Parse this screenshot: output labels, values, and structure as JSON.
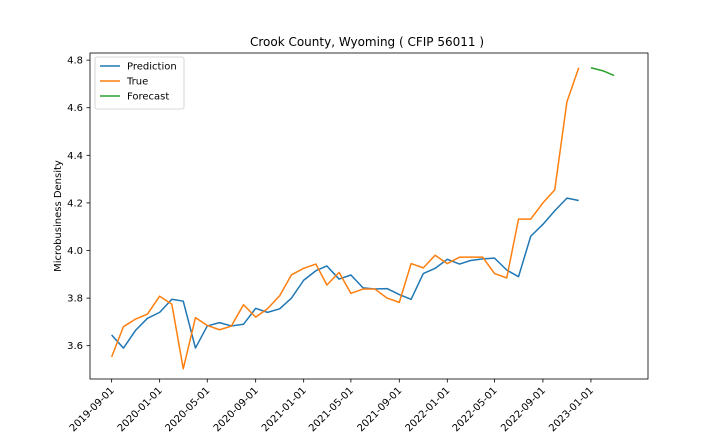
{
  "chart_data": {
    "type": "line",
    "title": "Crook County, Wyoming ( CFIP 56011 )",
    "xlabel": "",
    "ylabel": "Microbusiness Density",
    "x_ticks": [
      "2019-09-01",
      "2020-01-01",
      "2020-05-01",
      "2020-09-01",
      "2021-01-01",
      "2021-05-01",
      "2021-09-01",
      "2022-01-01",
      "2022-05-01",
      "2022-09-01",
      "2023-01-01"
    ],
    "y_ticks": [
      3.6,
      3.8,
      4.0,
      4.2,
      4.4,
      4.6,
      4.8
    ],
    "ylim": [
      3.46,
      4.83
    ],
    "xlim": [
      "2019-07-08",
      "2023-05-26"
    ],
    "grid": false,
    "legend_position": "top-left",
    "series": [
      {
        "name": "Prediction",
        "color": "#1f77b4",
        "points": [
          [
            "2019-09-01",
            3.645
          ],
          [
            "2019-10-01",
            3.59
          ],
          [
            "2019-11-01",
            3.665
          ],
          [
            "2019-12-01",
            3.715
          ],
          [
            "2020-01-01",
            3.74
          ],
          [
            "2020-02-01",
            3.795
          ],
          [
            "2020-03-01",
            3.787
          ],
          [
            "2020-04-01",
            3.59
          ],
          [
            "2020-05-01",
            3.683
          ],
          [
            "2020-06-01",
            3.697
          ],
          [
            "2020-07-01",
            3.683
          ],
          [
            "2020-08-01",
            3.69
          ],
          [
            "2020-09-01",
            3.757
          ],
          [
            "2020-10-01",
            3.74
          ],
          [
            "2020-11-01",
            3.755
          ],
          [
            "2020-12-01",
            3.8
          ],
          [
            "2021-01-01",
            3.875
          ],
          [
            "2021-02-01",
            3.915
          ],
          [
            "2021-03-01",
            3.935
          ],
          [
            "2021-04-01",
            3.88
          ],
          [
            "2021-05-01",
            3.897
          ],
          [
            "2021-06-01",
            3.843
          ],
          [
            "2021-07-01",
            3.838
          ],
          [
            "2021-08-01",
            3.84
          ],
          [
            "2021-09-01",
            3.815
          ],
          [
            "2021-10-01",
            3.795
          ],
          [
            "2021-11-01",
            3.903
          ],
          [
            "2021-12-01",
            3.925
          ],
          [
            "2022-01-01",
            3.963
          ],
          [
            "2022-02-01",
            3.943
          ],
          [
            "2022-03-01",
            3.958
          ],
          [
            "2022-04-01",
            3.965
          ],
          [
            "2022-05-01",
            3.968
          ],
          [
            "2022-06-01",
            3.918
          ],
          [
            "2022-07-01",
            3.89
          ],
          [
            "2022-08-01",
            4.06
          ],
          [
            "2022-09-01",
            4.11
          ],
          [
            "2022-10-01",
            4.167
          ],
          [
            "2022-11-01",
            4.22
          ],
          [
            "2022-12-01",
            4.21
          ]
        ]
      },
      {
        "name": "True",
        "color": "#ff7f0e",
        "points": [
          [
            "2019-09-01",
            3.553
          ],
          [
            "2019-10-01",
            3.68
          ],
          [
            "2019-11-01",
            3.712
          ],
          [
            "2019-12-01",
            3.733
          ],
          [
            "2020-01-01",
            3.808
          ],
          [
            "2020-02-01",
            3.774
          ],
          [
            "2020-03-01",
            3.503
          ],
          [
            "2020-04-01",
            3.718
          ],
          [
            "2020-05-01",
            3.685
          ],
          [
            "2020-06-01",
            3.667
          ],
          [
            "2020-07-01",
            3.682
          ],
          [
            "2020-08-01",
            3.772
          ],
          [
            "2020-09-01",
            3.72
          ],
          [
            "2020-10-01",
            3.755
          ],
          [
            "2020-11-01",
            3.81
          ],
          [
            "2020-12-01",
            3.898
          ],
          [
            "2021-01-01",
            3.925
          ],
          [
            "2021-02-01",
            3.943
          ],
          [
            "2021-03-01",
            3.855
          ],
          [
            "2021-04-01",
            3.908
          ],
          [
            "2021-05-01",
            3.82
          ],
          [
            "2021-06-01",
            3.838
          ],
          [
            "2021-07-01",
            3.838
          ],
          [
            "2021-08-01",
            3.8
          ],
          [
            "2021-09-01",
            3.782
          ],
          [
            "2021-10-01",
            3.945
          ],
          [
            "2021-11-01",
            3.927
          ],
          [
            "2021-12-01",
            3.98
          ],
          [
            "2022-01-01",
            3.945
          ],
          [
            "2022-02-01",
            3.972
          ],
          [
            "2022-03-01",
            3.972
          ],
          [
            "2022-04-01",
            3.972
          ],
          [
            "2022-05-01",
            3.903
          ],
          [
            "2022-06-01",
            3.885
          ],
          [
            "2022-07-01",
            4.132
          ],
          [
            "2022-08-01",
            4.132
          ],
          [
            "2022-09-01",
            4.2
          ],
          [
            "2022-10-01",
            4.255
          ],
          [
            "2022-11-01",
            4.625
          ],
          [
            "2022-12-01",
            4.768
          ]
        ]
      },
      {
        "name": "Forecast",
        "color": "#2ca02c",
        "points": [
          [
            "2023-01-01",
            4.768
          ],
          [
            "2023-02-01",
            4.755
          ],
          [
            "2023-03-01",
            4.735
          ]
        ]
      }
    ]
  }
}
